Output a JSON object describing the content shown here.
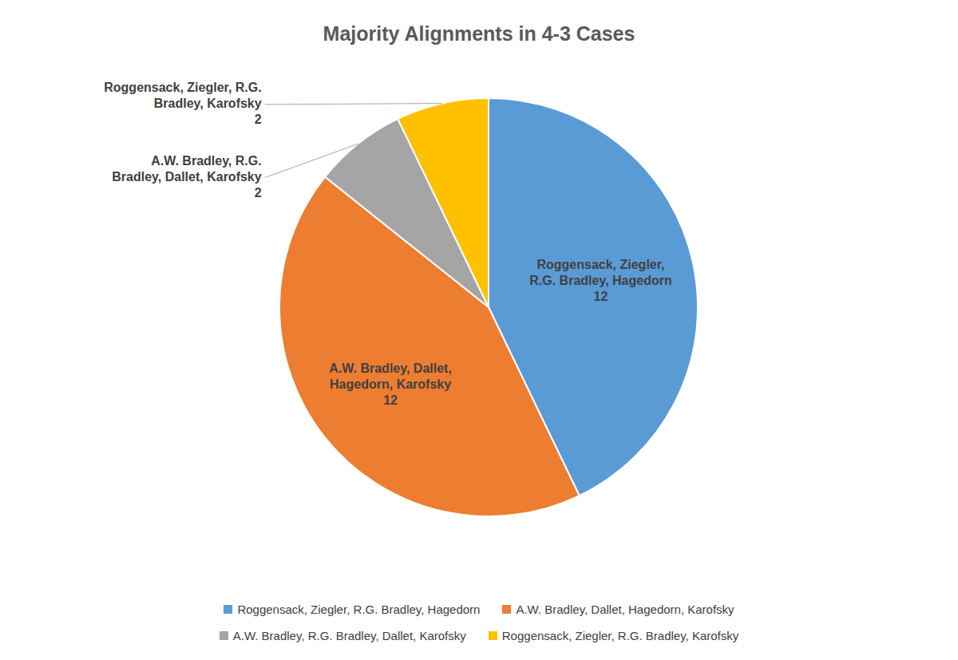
{
  "chart_data": {
    "type": "pie",
    "title": "Majority Alignments in 4-3 Cases",
    "categories": [
      "Roggensack, Ziegler, R.G. Bradley, Hagedorn",
      "A.W. Bradley, Dallet, Hagedorn, Karofsky",
      "A.W. Bradley, R.G. Bradley, Dallet, Karofsky",
      "Roggensack, Ziegler, R.G. Bradley, Karofsky"
    ],
    "values": [
      12,
      12,
      2,
      2
    ],
    "colors": [
      "#5b9bd5",
      "#ed7d31",
      "#a5a5a5",
      "#ffc000"
    ],
    "data_labels": true,
    "legend": "bottom"
  }
}
